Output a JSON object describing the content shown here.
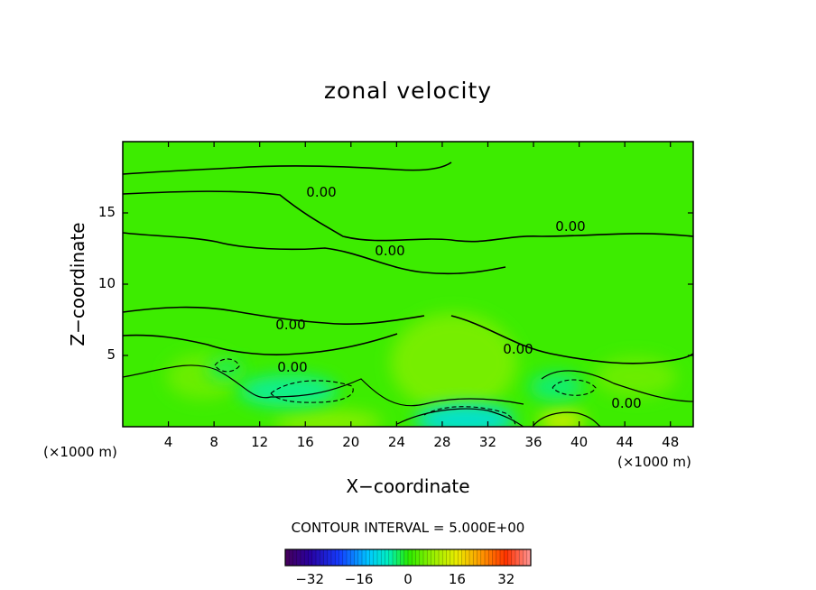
{
  "chart_data": {
    "type": "heatmap",
    "title": "zonal velocity",
    "xlabel": "X−coordinate",
    "ylabel": "Z−coordinate",
    "x_unit": "(×1000 m)",
    "z_unit": "(×1000 m)",
    "xlim": [
      0,
      50
    ],
    "ylim": [
      0,
      20
    ],
    "x_ticks": [
      "4",
      "8",
      "12",
      "16",
      "20",
      "24",
      "28",
      "32",
      "36",
      "40",
      "44",
      "48"
    ],
    "y_ticks": [
      "5",
      "10",
      "15"
    ],
    "contour_interval_label": "CONTOUR INTERVAL = 5.000E+00",
    "contour_labels": [
      "0.00",
      "0.00",
      "0.00",
      "0.00",
      "0.00",
      "0.00",
      "0.00"
    ],
    "colorbar": {
      "range": [
        -40,
        40
      ],
      "ticks": [
        "−32",
        "−16",
        "0",
        "16",
        "32"
      ],
      "colormap": "rainbow"
    },
    "features": [
      {
        "kind": "positive",
        "x": 29,
        "z": 4.5,
        "value": 6
      },
      {
        "kind": "positive",
        "x": 7,
        "z": 3.5,
        "value": 5
      },
      {
        "kind": "positive",
        "x": 45,
        "z": 3.5,
        "value": 5
      },
      {
        "kind": "positive",
        "x": 38.5,
        "z": 0.4,
        "value": 12
      },
      {
        "kind": "positive",
        "x": 18,
        "z": 0.3,
        "value": 7
      },
      {
        "kind": "negative",
        "x": 30,
        "z": 0.5,
        "value": -9
      },
      {
        "kind": "negative",
        "x": 14.5,
        "z": 2.5,
        "value": -5
      },
      {
        "kind": "negative",
        "x": 38,
        "z": 2.8,
        "value": -4
      },
      {
        "kind": "negative",
        "x": 9,
        "z": 4,
        "value": -3
      }
    ]
  }
}
